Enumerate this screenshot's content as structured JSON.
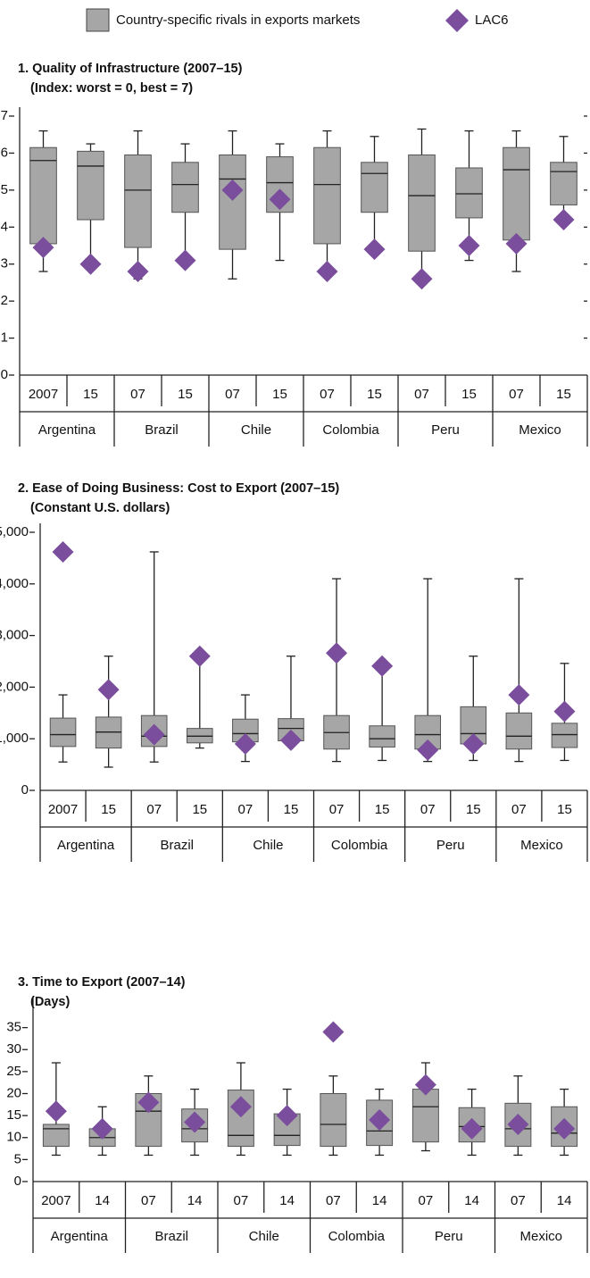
{
  "chart_data": [
    {
      "type": "box",
      "title": "1. Quality of Infrastructure (2007–15)",
      "subtitle": "(Index: worst = 0, best = 7)",
      "categories": [
        "2007",
        "15",
        "07",
        "15",
        "07",
        "15",
        "07",
        "15",
        "07",
        "15",
        "07",
        "15"
      ],
      "groups": [
        "Argentina",
        "Brazil",
        "Chile",
        "Colombia",
        "Peru",
        "Mexico"
      ],
      "ylim": [
        0,
        7
      ],
      "yticks": [
        0,
        1,
        2,
        3,
        4,
        5,
        6,
        7
      ],
      "series": [
        {
          "name": "Country-specific rivals in exports markets",
          "color": "#a6a6a6",
          "min": [
            2.8,
            3.0,
            2.6,
            3.1,
            2.6,
            3.1,
            2.8,
            3.4,
            2.6,
            3.1,
            2.8,
            4.2
          ],
          "q1": [
            3.55,
            4.2,
            3.45,
            4.4,
            3.4,
            4.4,
            3.55,
            4.4,
            3.35,
            4.25,
            3.65,
            4.6
          ],
          "median": [
            5.8,
            5.65,
            5.0,
            5.15,
            5.3,
            5.2,
            5.15,
            5.45,
            4.85,
            4.9,
            5.55,
            5.5
          ],
          "q3": [
            6.15,
            6.05,
            5.95,
            5.75,
            5.95,
            5.9,
            6.15,
            5.75,
            5.95,
            5.6,
            6.15,
            5.75
          ],
          "max": [
            6.6,
            6.25,
            6.6,
            6.25,
            6.6,
            6.25,
            6.6,
            6.45,
            6.65,
            6.6,
            6.6,
            6.45
          ]
        },
        {
          "name": "LAC6",
          "color": "#7a4e9c",
          "values": [
            3.45,
            3.0,
            2.8,
            3.1,
            5.0,
            4.75,
            2.8,
            3.4,
            2.6,
            3.5,
            3.55,
            4.2
          ]
        }
      ]
    },
    {
      "type": "box",
      "title": "2. Ease of Doing Business: Cost to Export (2007–15)",
      "subtitle": "(Constant U.S. dollars)",
      "categories": [
        "2007",
        "15",
        "07",
        "15",
        "07",
        "15",
        "07",
        "15",
        "07",
        "15",
        "07",
        "15"
      ],
      "groups": [
        "Argentina",
        "Brazil",
        "Chile",
        "Colombia",
        "Peru",
        "Mexico"
      ],
      "ylim": [
        0,
        5000
      ],
      "yticks": [
        0,
        {
          "value": 1000,
          "label": "1,000"
        },
        {
          "value": 2000,
          "label": "2,000"
        },
        {
          "value": 3000,
          "label": "3,000"
        },
        {
          "value": 4000,
          "label": "4,000"
        },
        {
          "value": 5000,
          "label": "5,000"
        }
      ],
      "series": [
        {
          "color": "#a6a6a6",
          "min": [
            550,
            450,
            550,
            820,
            560,
            950,
            560,
            580,
            560,
            580,
            560,
            580
          ],
          "q1": [
            850,
            820,
            850,
            920,
            940,
            960,
            800,
            840,
            800,
            900,
            800,
            830
          ],
          "median": [
            1080,
            1130,
            1050,
            1050,
            1100,
            1200,
            1120,
            1000,
            1080,
            1100,
            1050,
            1080
          ],
          "q3": [
            1400,
            1420,
            1450,
            1200,
            1380,
            1390,
            1450,
            1250,
            1450,
            1620,
            1500,
            1300
          ],
          "max": [
            1850,
            2600,
            4620,
            2600,
            1850,
            2600,
            4100,
            2400,
            4100,
            2600,
            4100,
            2460
          ]
        },
        {
          "color": "#7a4e9c",
          "values": [
            4620,
            1950,
            1080,
            2600,
            900,
            970,
            2660,
            2410,
            780,
            900,
            1850,
            1530
          ]
        }
      ]
    },
    {
      "type": "box",
      "title": "3. Time to Export (2007–14)",
      "subtitle": "(Days)",
      "categories": [
        "2007",
        "14",
        "07",
        "14",
        "07",
        "14",
        "07",
        "14",
        "07",
        "14",
        "07",
        "14"
      ],
      "groups": [
        "Argentina",
        "Brazil",
        "Chile",
        "Colombia",
        "Peru",
        "Mexico"
      ],
      "ylim": [
        0,
        40
      ],
      "yticks": [
        0,
        5,
        10,
        15,
        20,
        25,
        30,
        35
      ],
      "series": [
        {
          "color": "#a6a6a6",
          "min": [
            6,
            6,
            6,
            6,
            6,
            6,
            6,
            6,
            7,
            6,
            6,
            6
          ],
          "q1": [
            8,
            8,
            8,
            9,
            8,
            8.2,
            8,
            8.2,
            9,
            9,
            8,
            8
          ],
          "median": [
            12,
            10,
            16,
            12,
            10.5,
            10.5,
            13,
            11.5,
            17,
            12.5,
            12,
            11
          ],
          "q3": [
            13,
            12,
            20,
            16.5,
            20.8,
            15.4,
            20,
            18.5,
            21,
            16.8,
            17.8,
            17
          ],
          "max": [
            27,
            17,
            24,
            21,
            27,
            21,
            24,
            21,
            27,
            21,
            24,
            21
          ]
        },
        {
          "color": "#7a4e9c",
          "values": [
            16,
            12,
            18,
            13.5,
            17,
            15,
            34,
            14,
            22,
            12,
            13,
            12
          ]
        }
      ]
    }
  ]
}
